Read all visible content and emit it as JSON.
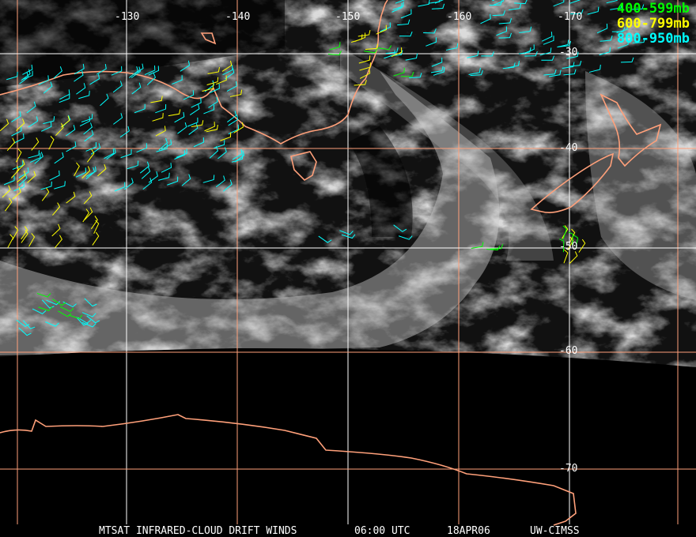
{
  "title": "MTSAT INFRARED-CLOUD DRIFT WINDS",
  "time": "06:00 UTC",
  "date": "18APR06",
  "source": "UW-CIMSS",
  "longitude_labels": [
    "-130",
    "-140",
    "-150",
    "-160",
    "-170"
  ],
  "latitude_labels": [
    "-30",
    "-40",
    "-50",
    "-60",
    "-70"
  ],
  "legend": [
    {
      "label": "400-599mb",
      "color": "#00ff00"
    },
    {
      "label": "600-799mb",
      "color": "#ffff00"
    },
    {
      "label": "800-950mb",
      "color": "#00ffff"
    }
  ],
  "colors": {
    "coastline": "#ffa07a",
    "grid_white": "#ffffff",
    "grid_orange": "#ffa07a",
    "background": "#000000"
  }
}
